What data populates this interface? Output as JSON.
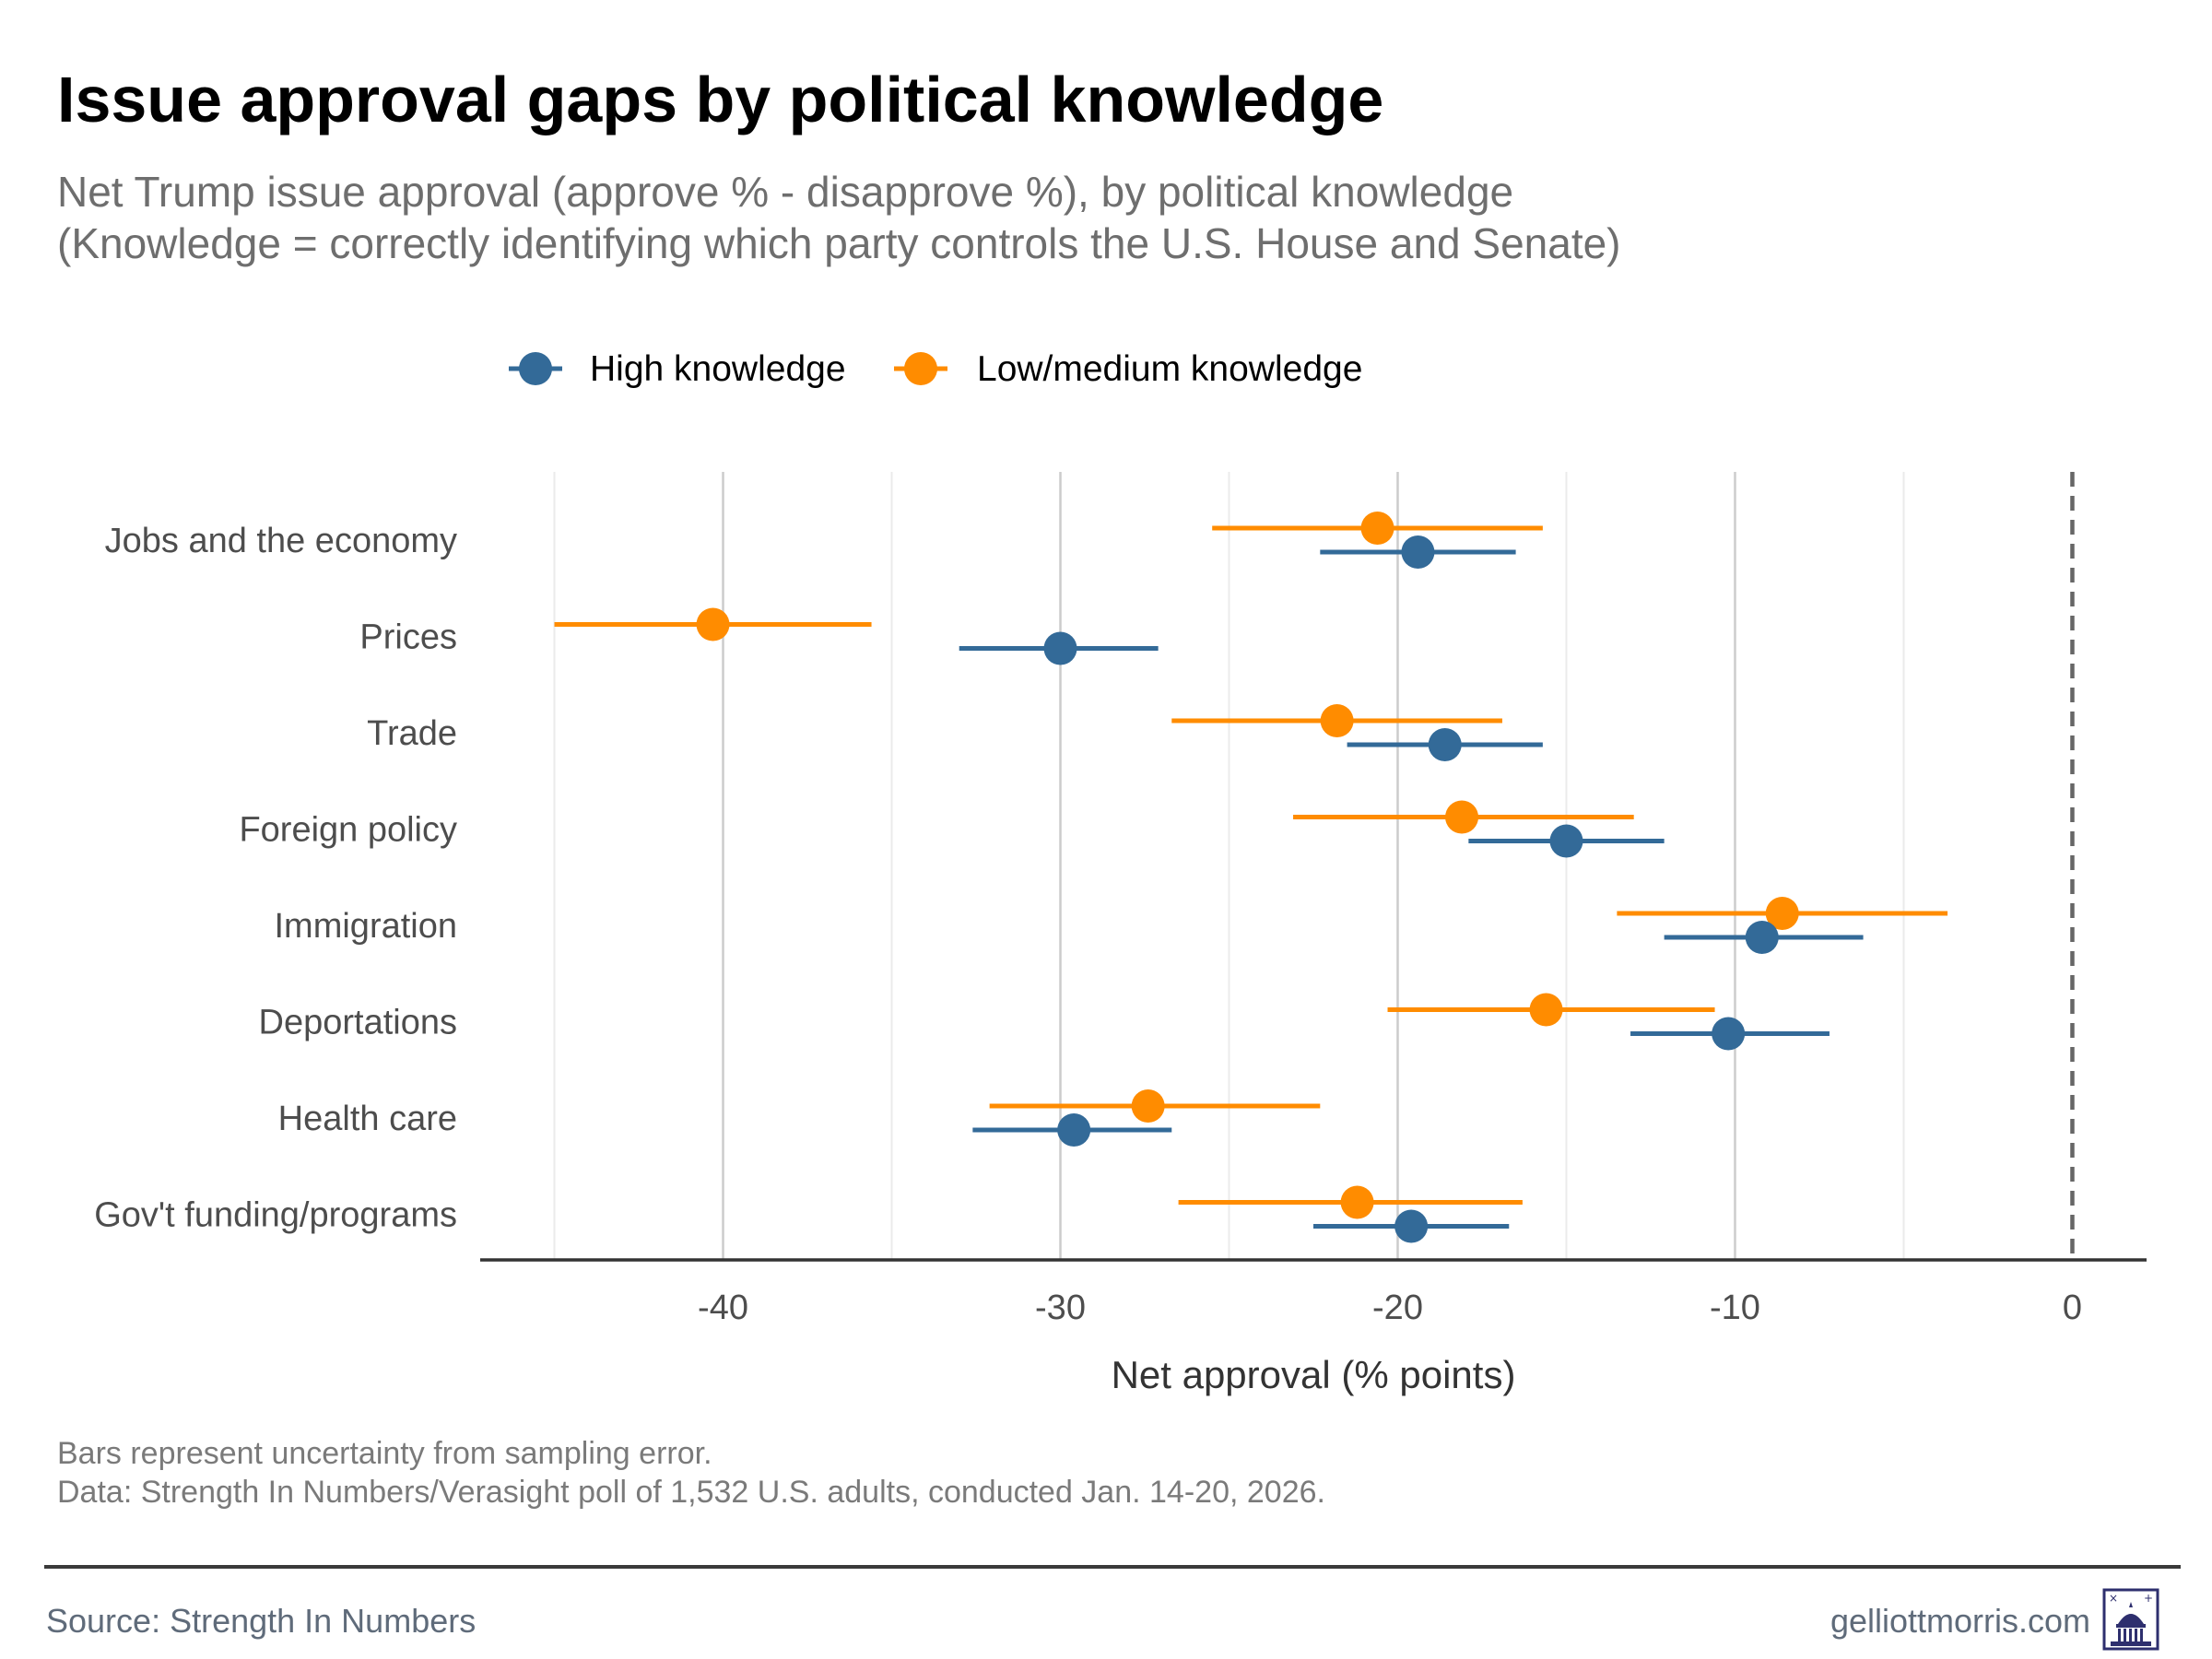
{
  "title": "Issue approval gaps by political knowledge",
  "subtitle_lines": [
    "Net Trump issue approval (approve % - disapprove %), by political knowledge",
    "(Knowledge = correctly identifying which party controls the U.S. House and Senate)"
  ],
  "note_lines": [
    "Bars represent uncertainty from sampling error.",
    "Data: Strength In Numbers/Verasight poll of 1,532 U.S. adults, conducted Jan. 14-20, 2026."
  ],
  "footer": {
    "source": "Source: Strength In Numbers",
    "site": "gelliottmorris.com",
    "logo_icon": "capitol-dome-icon"
  },
  "colors": {
    "high": "#336a98",
    "low": "#ff8c00",
    "grid_major": "#cccccc",
    "grid_minor": "#ebebeb",
    "axis": "#333333",
    "zero_line": "#666666"
  },
  "chart_data": {
    "type": "dot-range",
    "title": "Issue approval gaps by political knowledge",
    "xlabel": "Net approval (% points)",
    "ylabel": "",
    "xlim": [
      -47.2,
      2.2
    ],
    "xticks": [
      -40,
      -30,
      -20,
      -10,
      0
    ],
    "xtick_labels": [
      "-40",
      "-30",
      "-20",
      "-10",
      "0"
    ],
    "reference_line": 0,
    "grid": true,
    "legend_position": "top",
    "categories": [
      "Jobs and the economy",
      "Prices",
      "Trade",
      "Foreign policy",
      "Immigration",
      "Deportations",
      "Health care",
      "Gov't funding/programs"
    ],
    "series": [
      {
        "name": "High knowledge",
        "key": "high",
        "values": [
          -19.4,
          -30.0,
          -18.6,
          -15.0,
          -9.2,
          -10.2,
          -29.6,
          -19.6
        ],
        "lower": [
          -22.3,
          -33.0,
          -21.5,
          -17.9,
          -12.1,
          -13.1,
          -32.6,
          -22.5
        ],
        "upper": [
          -16.5,
          -27.1,
          -15.7,
          -12.1,
          -6.2,
          -7.2,
          -26.7,
          -16.7
        ]
      },
      {
        "name": "Low/medium knowledge",
        "key": "low",
        "values": [
          -20.6,
          -40.3,
          -21.8,
          -18.1,
          -8.6,
          -15.6,
          -27.4,
          -21.2
        ],
        "lower": [
          -25.5,
          -45.0,
          -26.7,
          -23.1,
          -13.5,
          -20.3,
          -32.1,
          -26.5
        ],
        "upper": [
          -15.7,
          -35.6,
          -16.9,
          -13.0,
          -3.7,
          -10.6,
          -22.3,
          -16.3
        ]
      }
    ]
  }
}
